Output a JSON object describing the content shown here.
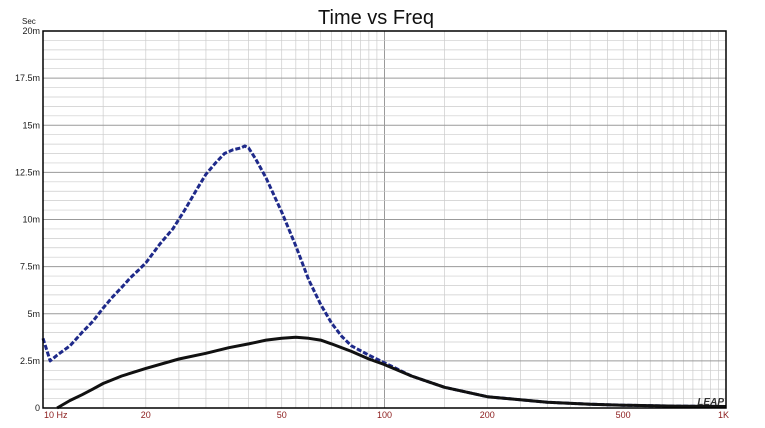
{
  "chart_data": {
    "type": "line",
    "title": "Time vs Freq",
    "y_unit": "Sec",
    "x_scale": "log",
    "xlim": [
      10,
      1000
    ],
    "ylim": [
      0,
      0.02
    ],
    "grid": true,
    "x_ticks": [
      {
        "value": 10,
        "label": "10 Hz"
      },
      {
        "value": 20,
        "label": "20"
      },
      {
        "value": 50,
        "label": "50"
      },
      {
        "value": 100,
        "label": "100"
      },
      {
        "value": 200,
        "label": "200"
      },
      {
        "value": 500,
        "label": "500"
      },
      {
        "value": 1000,
        "label": "1K"
      }
    ],
    "y_ticks": [
      {
        "value": 0,
        "label": "0"
      },
      {
        "value": 0.0025,
        "label": "2.5m"
      },
      {
        "value": 0.005,
        "label": "5m"
      },
      {
        "value": 0.0075,
        "label": "7.5m"
      },
      {
        "value": 0.01,
        "label": "10m"
      },
      {
        "value": 0.0125,
        "label": "12.5m"
      },
      {
        "value": 0.015,
        "label": "15m"
      },
      {
        "value": 0.0175,
        "label": "17.5m"
      },
      {
        "value": 0.02,
        "label": "20m"
      }
    ],
    "series": [
      {
        "color": "#1f2a8a",
        "style": "dashed",
        "x": [
          10,
          10.5,
          11,
          12,
          13,
          14,
          15,
          16,
          17,
          18,
          19,
          20,
          22,
          24,
          26,
          28,
          30,
          32,
          34,
          36,
          38,
          39,
          40,
          42,
          45,
          48,
          50,
          55,
          60,
          65,
          70,
          75,
          80,
          90,
          100,
          120,
          150,
          200,
          300,
          400,
          500,
          700,
          1000
        ],
        "y": [
          0.0037,
          0.0025,
          0.0028,
          0.0033,
          0.004,
          0.0046,
          0.0053,
          0.0059,
          0.0064,
          0.0069,
          0.0073,
          0.0077,
          0.0087,
          0.0095,
          0.0105,
          0.0115,
          0.0124,
          0.013,
          0.0135,
          0.0137,
          0.0138,
          0.0139,
          0.0138,
          0.0132,
          0.0122,
          0.0111,
          0.0104,
          0.0086,
          0.0068,
          0.0055,
          0.0045,
          0.0038,
          0.0033,
          0.0028,
          0.0024,
          0.0017,
          0.0011,
          0.0006,
          0.0003,
          0.0002,
          0.00015,
          0.0001,
          8e-05
        ]
      },
      {
        "color": "#111111",
        "style": "solid",
        "x": [
          11,
          12,
          13,
          14,
          15,
          17,
          20,
          25,
          30,
          35,
          40,
          45,
          50,
          55,
          60,
          65,
          70,
          80,
          90,
          100,
          120,
          150,
          200,
          300,
          400,
          500,
          700,
          1000
        ],
        "y": [
          0,
          0.0004,
          0.0007,
          0.001,
          0.0013,
          0.0017,
          0.0021,
          0.0026,
          0.0029,
          0.0032,
          0.0034,
          0.0036,
          0.0037,
          0.00375,
          0.0037,
          0.0036,
          0.0034,
          0.003,
          0.0026,
          0.0023,
          0.0017,
          0.0011,
          0.0006,
          0.0003,
          0.0002,
          0.00015,
          0.0001,
          8e-05
        ]
      }
    ],
    "logo": "LEAP"
  }
}
